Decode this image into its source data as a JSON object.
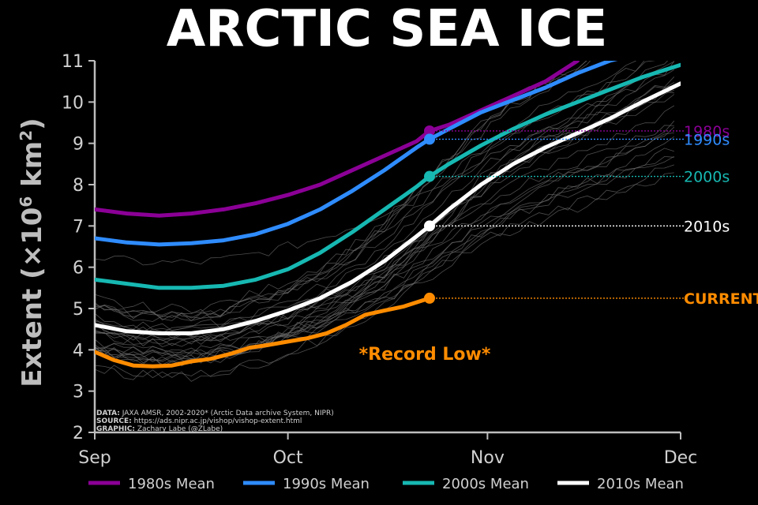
{
  "chart_data": {
    "type": "line",
    "title": "ARCTIC SEA ICE",
    "ylabel": "Extent (×10⁶ km²)",
    "ylabel_base": "Extent (×10",
    "ylabel_exp1": "6",
    "ylabel_mid": " km",
    "ylabel_exp2": "2",
    "ylabel_end": ")",
    "xlabel": "",
    "ylim": [
      2,
      11
    ],
    "yticks": [
      2,
      3,
      4,
      5,
      6,
      7,
      8,
      9,
      10,
      11
    ],
    "xlim": [
      0,
      91
    ],
    "xticks": [
      {
        "x": 0,
        "label": "Sep"
      },
      {
        "x": 30,
        "label": "Oct"
      },
      {
        "x": 61,
        "label": "Nov"
      },
      {
        "x": 91,
        "label": "Dec"
      }
    ],
    "grid": false,
    "legend_position": "bottom",
    "current_day": 52,
    "series": [
      {
        "name": "1980s Mean",
        "label": "1980s",
        "color": "#8b0096",
        "endpoint": 9.3,
        "x": [
          0,
          5,
          10,
          15,
          20,
          25,
          30,
          35,
          40,
          45,
          50,
          52,
          55,
          60,
          65,
          70,
          75
        ],
        "values": [
          7.4,
          7.3,
          7.25,
          7.3,
          7.4,
          7.55,
          7.75,
          8.0,
          8.35,
          8.7,
          9.05,
          9.3,
          9.45,
          9.8,
          10.15,
          10.5,
          11.0
        ]
      },
      {
        "name": "1990s Mean",
        "label": "1990s",
        "color": "#2f8cff",
        "endpoint": 9.1,
        "x": [
          0,
          5,
          10,
          15,
          20,
          25,
          30,
          35,
          40,
          45,
          50,
          52,
          55,
          60,
          65,
          70,
          75,
          80,
          85
        ],
        "values": [
          6.7,
          6.6,
          6.55,
          6.58,
          6.65,
          6.8,
          7.05,
          7.4,
          7.85,
          8.35,
          8.9,
          9.1,
          9.35,
          9.75,
          10.05,
          10.35,
          10.7,
          11.0,
          11.2
        ]
      },
      {
        "name": "2000s Mean",
        "label": "2000s",
        "color": "#17b8b2",
        "endpoint": 8.2,
        "x": [
          0,
          5,
          10,
          15,
          20,
          25,
          30,
          35,
          40,
          45,
          50,
          52,
          55,
          60,
          65,
          70,
          75,
          80,
          85,
          91
        ],
        "values": [
          5.7,
          5.6,
          5.5,
          5.5,
          5.55,
          5.7,
          5.95,
          6.35,
          6.85,
          7.4,
          7.95,
          8.2,
          8.5,
          8.95,
          9.35,
          9.7,
          10.0,
          10.3,
          10.6,
          10.9
        ]
      },
      {
        "name": "2010s Mean",
        "label": "2010s",
        "color": "#ffffff",
        "endpoint": 7.0,
        "x": [
          0,
          5,
          10,
          15,
          20,
          25,
          30,
          35,
          40,
          45,
          50,
          52,
          55,
          60,
          65,
          70,
          75,
          80,
          85,
          91
        ],
        "values": [
          4.6,
          4.45,
          4.4,
          4.4,
          4.5,
          4.7,
          4.95,
          5.25,
          5.65,
          6.15,
          6.75,
          7.0,
          7.4,
          8.0,
          8.5,
          8.9,
          9.25,
          9.6,
          10.0,
          10.45
        ]
      },
      {
        "name": "CURRENT",
        "label": "CURRENT",
        "color": "#ff8c00",
        "endpoint": 5.25,
        "x": [
          0,
          3,
          6,
          9,
          12,
          15,
          18,
          21,
          24,
          27,
          30,
          33,
          36,
          39,
          42,
          45,
          48,
          50,
          52
        ],
        "values": [
          3.95,
          3.75,
          3.62,
          3.6,
          3.62,
          3.72,
          3.78,
          3.9,
          4.05,
          4.12,
          4.2,
          4.28,
          4.4,
          4.6,
          4.85,
          4.95,
          5.05,
          5.15,
          5.25
        ]
      }
    ],
    "annotation": "*Record Low*",
    "credits": [
      {
        "label": "DATA:",
        "text": " JAXA AMSR, 2002-2020* (Arctic Data archive System, NIPR)"
      },
      {
        "label": "SOURCE:",
        "text": " https://ads.nipr.ac.jp/vishop/vishop-extent.html"
      },
      {
        "label": "GRAPHIC:",
        "text": " Zachary Labe (@ZLabe)"
      }
    ]
  }
}
